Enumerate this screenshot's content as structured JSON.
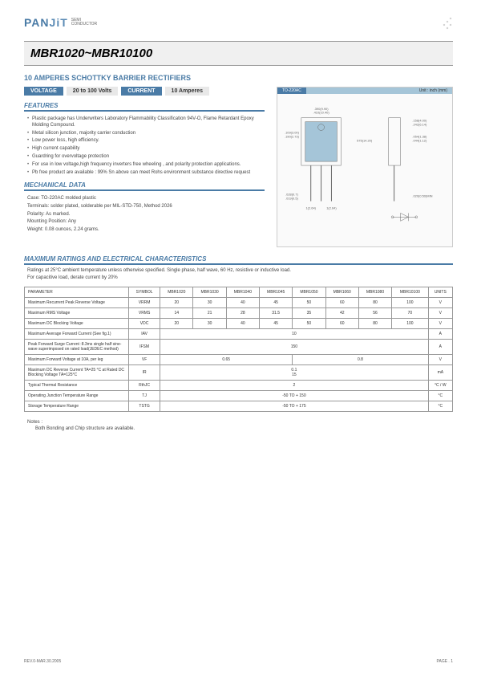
{
  "logo": {
    "pan": "PAN",
    "jit": "JiT",
    "sub1": "SEMI",
    "sub2": "CONDUCTOR"
  },
  "title": "MBR1020~MBR10100",
  "subtitle": "10 AMPERES SCHOTTKY BARRIER RECTIFIERS",
  "specs": {
    "voltage_label": "VOLTAGE",
    "voltage_value": "20 to 100 Volts",
    "current_label": "CURRENT",
    "current_value": "10 Amperes"
  },
  "package": {
    "type": "TO-220AC",
    "unit": "Unit : inch (mm)"
  },
  "features": {
    "header": "FEATURES",
    "items": [
      "Plastic package has Underwriters Laboratory Flammability Classification 94V-O, Flame Retardant Epoxy Molding Compound.",
      "Metal silicon junction, majority carrier conduction",
      "Low power loss, high efficiency.",
      "High current capability",
      "Guardring for overvoltage protection",
      "For use in low voltage,high frequency inverters free wheeling , and polarity protection applications.",
      "Pb free product are available : 99% Sn above can meet Rohs environment substance directive request"
    ]
  },
  "mechanical": {
    "header": "MECHANICAL DATA",
    "case": "Case: TO-220AC molded plastic",
    "terminals": "Terminals: solder plated, solderable per MIL-STD-750, Method 2026",
    "polarity": "Polarity:  As marked.",
    "mounting": "Mounting Position: Any",
    "weight": "Weight: 0.08 ounces, 2.24 grams."
  },
  "ratings": {
    "header": "MAXIMUM RATINGS AND ELECTRICAL CHARACTERISTICS",
    "desc1": "Ratings at 25°C ambient temperature unless otherwise specified. Single phase, half wave, 60 Hz, resistive or inductive load.",
    "desc2": "For capacitive load, derate current by 20%"
  },
  "table": {
    "columns": [
      "PARAMETER",
      "SYMBOL",
      "MBR1020",
      "MBR1030",
      "MBR1040",
      "MBR1045",
      "MBR1050",
      "MBR1060",
      "MBR1080",
      "MBR10100",
      "UNITS"
    ],
    "rows": [
      {
        "param": "Maximum Recurrent Peak Reverse Voltage",
        "symbol": "VRRM",
        "values": [
          "20",
          "30",
          "40",
          "45",
          "50",
          "60",
          "80",
          "100"
        ],
        "unit": "V"
      },
      {
        "param": "Maximum RMS Voltage",
        "symbol": "VRMS",
        "values": [
          "14",
          "21",
          "28",
          "31.5",
          "35",
          "42",
          "56",
          "70"
        ],
        "unit": "V"
      },
      {
        "param": "Maximum DC Blocking Voltage",
        "symbol": "VDC",
        "values": [
          "20",
          "30",
          "40",
          "45",
          "50",
          "60",
          "80",
          "100"
        ],
        "unit": "V"
      },
      {
        "param": "Maximum Average Forward  Current (See fig.1)",
        "symbol": "IAV",
        "span": "10",
        "unit": "A"
      },
      {
        "param": "Peak Forward Surge Current :8.3ms single half sine-wave superimposed on rated load(JEDEC method)",
        "symbol": "IFSM",
        "span": "150",
        "unit": "A"
      },
      {
        "param": "Maximum Forward Voltage at 10A, per leg",
        "symbol": "VF",
        "half1": "0.65",
        "half2": "0.8",
        "unit": "V"
      },
      {
        "param": "Maximum DC Reverse Current TA=25 °C at Rated DC Blocking Voltage TA=125°C",
        "symbol": "IR",
        "span": "0.1\n15",
        "unit": "mA"
      },
      {
        "param": "Typical Thermal Resistance",
        "symbol": "RthJC",
        "span": "2",
        "unit": "°C / W"
      },
      {
        "param": "Operating Junction Temperature Range",
        "symbol": "TJ",
        "span": "-50 TO + 150",
        "unit": "°C"
      },
      {
        "param": "Storage Temperature Range",
        "symbol": "TSTG",
        "span": "-50 TO + 175",
        "unit": "°C"
      }
    ]
  },
  "notes": {
    "title": "Notes :",
    "text": "Both Bonding and Chip structure are available."
  },
  "footer": {
    "rev": "REV.0-MAR.30.2005",
    "page": "PAGE . 1"
  },
  "colors": {
    "primary": "#4a7ba6",
    "light_blue": "#a5c5d8"
  }
}
